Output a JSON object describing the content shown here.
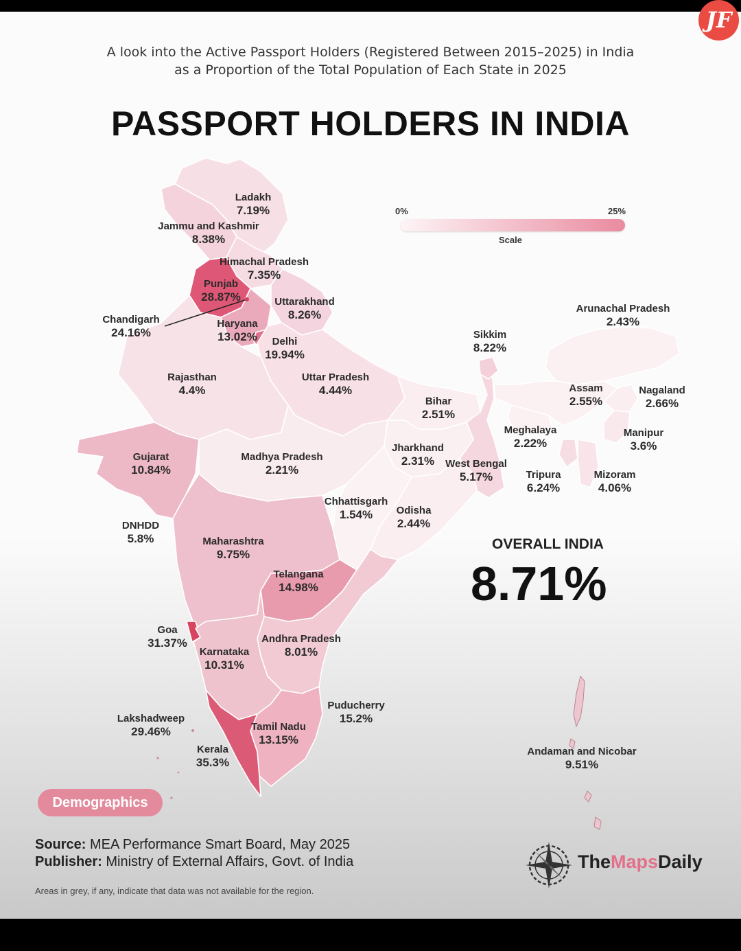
{
  "header": {
    "subtitle_line1": "A look into the Active Passport Holders (Registered Between 2015–2025) in India",
    "subtitle_line2": "as a Proportion of the Total Population of Each State in 2025",
    "title": "PASSPORT HOLDERS IN INDIA",
    "badge": "JF"
  },
  "scale": {
    "min_label": "0%",
    "max_label": "25%",
    "caption": "Scale",
    "min": 0,
    "max": 25,
    "color_low": "#fdf4f6",
    "color_high": "#e98ba0"
  },
  "regions": [
    {
      "name": "Ladakh",
      "value": "7.19%"
    },
    {
      "name": "Jammu and Kashmir",
      "value": "8.38%"
    },
    {
      "name": "Himachal Pradesh",
      "value": "7.35%"
    },
    {
      "name": "Punjab",
      "value": "28.87%"
    },
    {
      "name": "Chandigarh",
      "value": "24.16%"
    },
    {
      "name": "Uttarakhand",
      "value": "8.26%"
    },
    {
      "name": "Haryana",
      "value": "13.02%"
    },
    {
      "name": "Delhi",
      "value": "19.94%"
    },
    {
      "name": "Arunachal Pradesh",
      "value": "2.43%"
    },
    {
      "name": "Sikkim",
      "value": "8.22%"
    },
    {
      "name": "Rajasthan",
      "value": "4.4%"
    },
    {
      "name": "Uttar Pradesh",
      "value": "4.44%"
    },
    {
      "name": "Bihar",
      "value": "2.51%"
    },
    {
      "name": "Assam",
      "value": "2.55%"
    },
    {
      "name": "Nagaland",
      "value": "2.66%"
    },
    {
      "name": "Meghalaya",
      "value": "2.22%"
    },
    {
      "name": "Manipur",
      "value": "3.6%"
    },
    {
      "name": "Jharkhand",
      "value": "2.31%"
    },
    {
      "name": "West Bengal",
      "value": "5.17%"
    },
    {
      "name": "Tripura",
      "value": "6.24%"
    },
    {
      "name": "Mizoram",
      "value": "4.06%"
    },
    {
      "name": "Gujarat",
      "value": "10.84%"
    },
    {
      "name": "Madhya Pradesh",
      "value": "2.21%"
    },
    {
      "name": "Chhattisgarh",
      "value": "1.54%"
    },
    {
      "name": "Odisha",
      "value": "2.44%"
    },
    {
      "name": "DNHDD",
      "value": "5.8%"
    },
    {
      "name": "Maharashtra",
      "value": "9.75%"
    },
    {
      "name": "Telangana",
      "value": "14.98%"
    },
    {
      "name": "Goa",
      "value": "31.37%"
    },
    {
      "name": "Karnataka",
      "value": "10.31%"
    },
    {
      "name": "Andhra Pradesh",
      "value": "8.01%"
    },
    {
      "name": "Puducherry",
      "value": "15.2%"
    },
    {
      "name": "Lakshadweep",
      "value": "29.46%"
    },
    {
      "name": "Tamil Nadu",
      "value": "13.15%"
    },
    {
      "name": "Kerala",
      "value": "35.3%"
    },
    {
      "name": "Andaman and Nicobar",
      "value": "9.51%"
    }
  ],
  "overall": {
    "label": "OVERALL INDIA",
    "value": "8.71%"
  },
  "footer": {
    "tag": "Demographics",
    "source_key": "Source:",
    "source_val": " MEA Performance Smart Board, May 2025",
    "publisher_key": "Publisher:",
    "publisher_val": " Ministry of External Affairs, Govt. of India",
    "note": "Areas in grey, if any, indicate that data was not available for the region.",
    "logo_a": "The",
    "logo_b": "Maps",
    "logo_c": "Daily"
  }
}
